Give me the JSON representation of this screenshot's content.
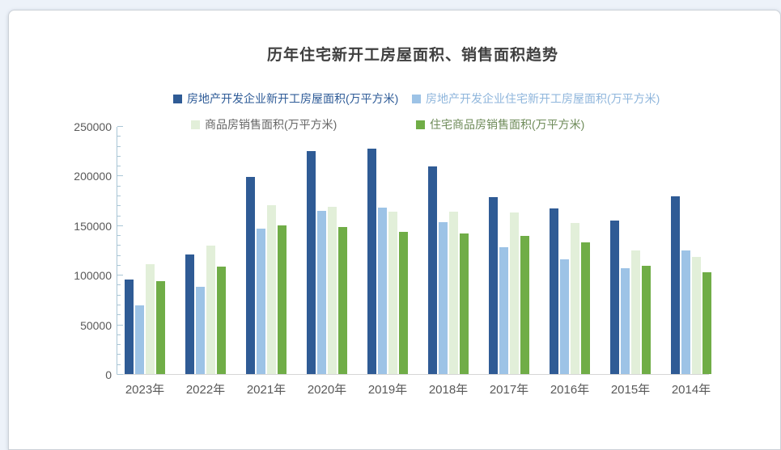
{
  "page": {
    "background_color": "#edf2f9",
    "card_background": "#ffffff"
  },
  "chart_data": {
    "type": "bar",
    "title": "历年住宅新开工房屋面积、销售面积趋势",
    "title_color": "#3f3f3f",
    "categories": [
      "2023年",
      "2022年",
      "2021年",
      "2020年",
      "2019年",
      "2018年",
      "2017年",
      "2016年",
      "2015年",
      "2014年"
    ],
    "series": [
      {
        "name": "房地产开发企业新开工房屋面积(万平方米)",
        "color": "#2f5b95",
        "legend_text_color": "#2e5b97",
        "values": [
          95376,
          120587,
          198895,
          224433,
          227154,
          209342,
          178654,
          166928,
          154454,
          179592
        ]
      },
      {
        "name": "房地产开发企业住宅新开工房屋面积(万平方米)",
        "color": "#9dc3e6",
        "legend_text_color": "#8fb6dc",
        "values": [
          69286,
          88135,
          146379,
          164329,
          167463,
          153353,
          128098,
          115911,
          106651,
          124877
        ]
      },
      {
        "name": "商品房销售面积(万平方米)",
        "color": "#e2efd9",
        "legend_text_color": "#666666",
        "values": [
          110700,
          129500,
          170400,
          168500,
          163700,
          164000,
          162600,
          152300,
          124600,
          118100
        ]
      },
      {
        "name": "住宅商品房销售面积(万平方米)",
        "color": "#70ad47",
        "legend_text_color": "#6e8b59",
        "values": [
          94000,
          108300,
          149800,
          148200,
          143300,
          141700,
          139500,
          132700,
          109100,
          102400
        ]
      }
    ],
    "ylim": [
      0,
      250000
    ],
    "y_major_ticks": [
      0,
      50000,
      100000,
      150000,
      200000,
      250000
    ],
    "y_minor_step": 10000,
    "grid": false,
    "legend_position": "top",
    "axis": {
      "tick_color": "#a9c6d6",
      "baseline_color": "#d6d6d6",
      "label_color": "#595959"
    }
  }
}
